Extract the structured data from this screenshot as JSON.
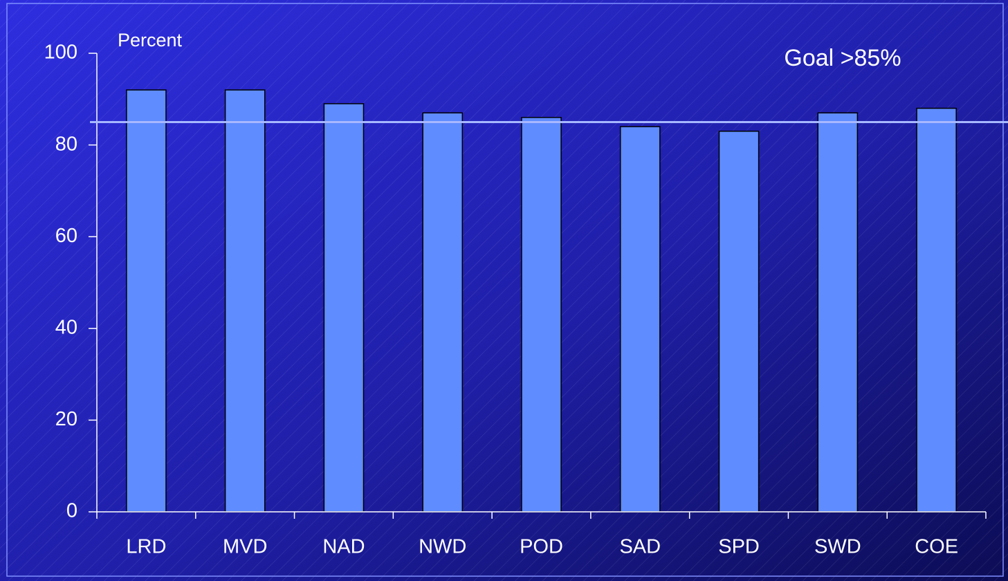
{
  "chart_data": {
    "type": "bar",
    "y_label": "Percent",
    "annotation": "Goal >85%",
    "goal": 85,
    "categories": [
      "LRD",
      "MVD",
      "NAD",
      "NWD",
      "POD",
      "SAD",
      "SPD",
      "SWD",
      "COE"
    ],
    "values": [
      92,
      92,
      89,
      87,
      86,
      84,
      83,
      87,
      88
    ],
    "color": "#5f8cff",
    "ylim": [
      0,
      100
    ],
    "yticks": [
      0,
      20,
      40,
      60,
      80,
      100
    ],
    "grid": false
  }
}
